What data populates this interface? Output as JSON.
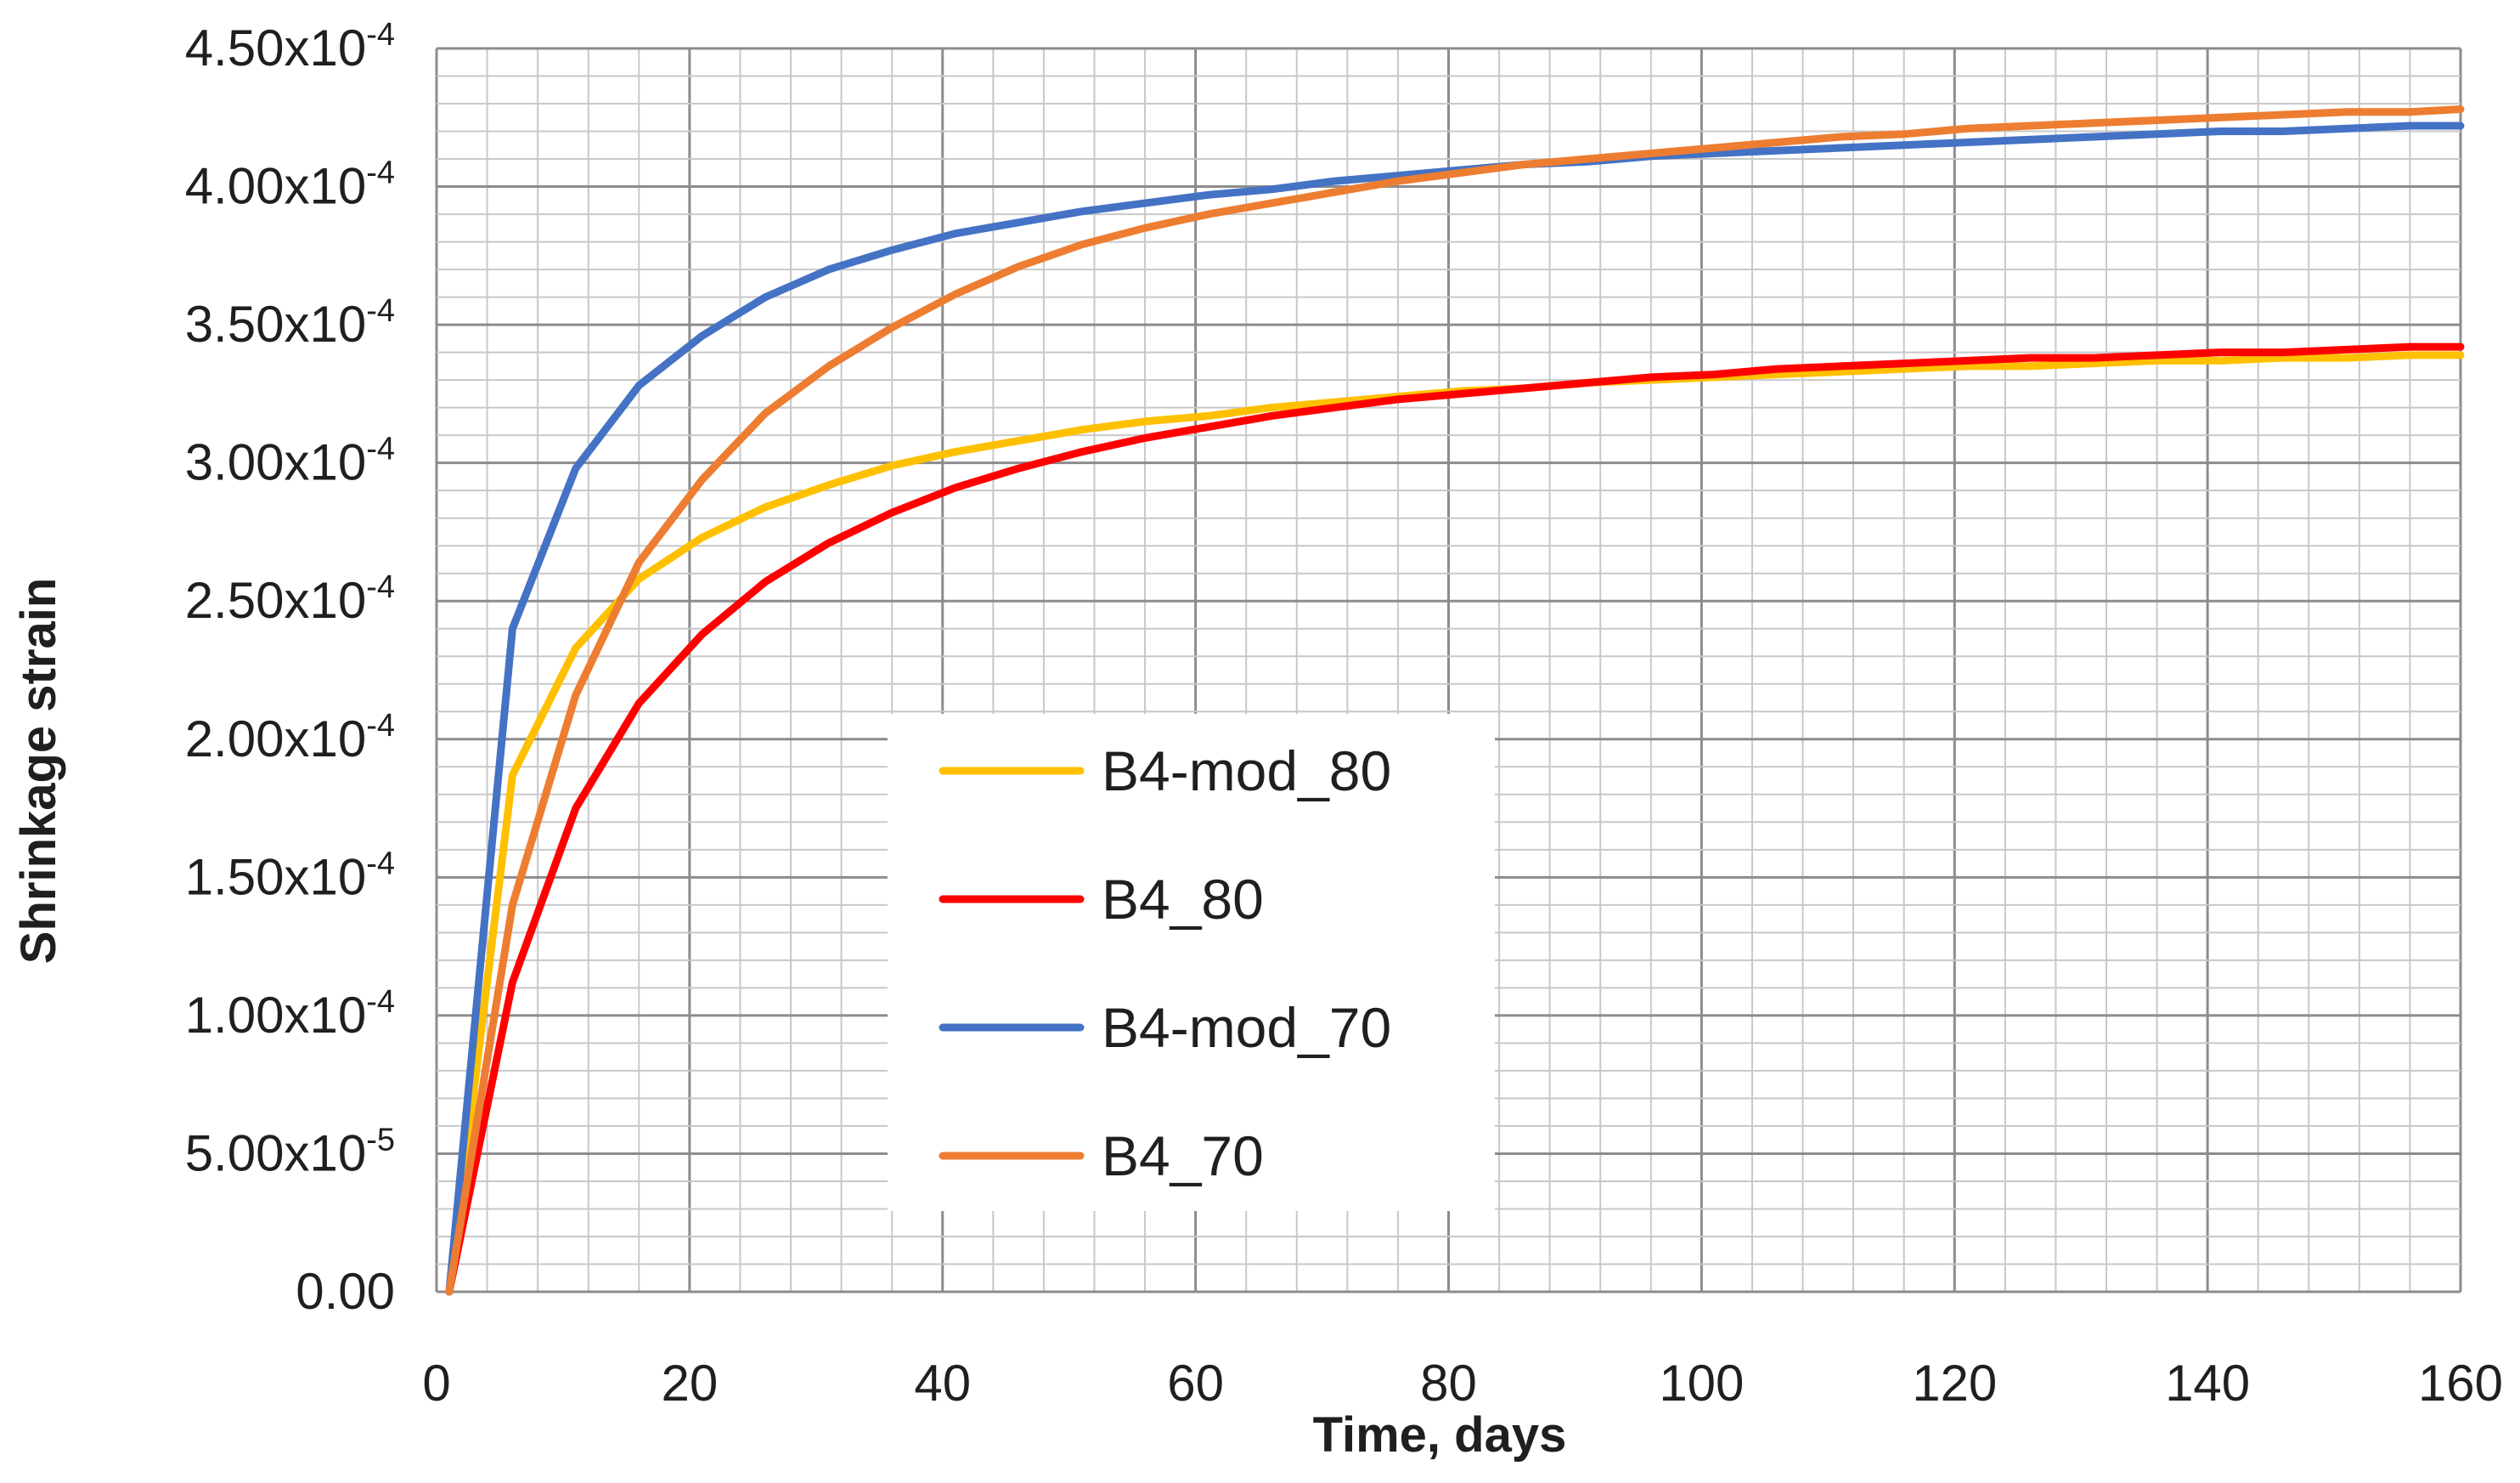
{
  "chart_data": {
    "type": "line",
    "title": "",
    "xlabel": "Time, days",
    "ylabel": "Shrinkage strain",
    "xlim": [
      0,
      160
    ],
    "ylim": [
      0,
      0.00045
    ],
    "grid": "on",
    "legend_position": "center",
    "x_ticks": [
      {
        "value": 0,
        "label": "0"
      },
      {
        "value": 20,
        "label": "20"
      },
      {
        "value": 40,
        "label": "40"
      },
      {
        "value": 60,
        "label": "60"
      },
      {
        "value": 80,
        "label": "80"
      },
      {
        "value": 100,
        "label": "100"
      },
      {
        "value": 120,
        "label": "120"
      },
      {
        "value": 140,
        "label": "140"
      },
      {
        "value": 160,
        "label": "160"
      }
    ],
    "y_ticks": [
      {
        "value": 0,
        "mant": "0.00",
        "exp": ""
      },
      {
        "value": 5e-05,
        "mant": "5.00x10",
        "exp": "-5"
      },
      {
        "value": 0.0001,
        "mant": "1.00x10",
        "exp": "-4"
      },
      {
        "value": 0.00015,
        "mant": "1.50x10",
        "exp": "-4"
      },
      {
        "value": 0.0002,
        "mant": "2.00x10",
        "exp": "-4"
      },
      {
        "value": 0.00025,
        "mant": "2.50x10",
        "exp": "-4"
      },
      {
        "value": 0.0003,
        "mant": "3.00x10",
        "exp": "-4"
      },
      {
        "value": 0.00035,
        "mant": "3.50x10",
        "exp": "-4"
      },
      {
        "value": 0.0004,
        "mant": "4.00x10",
        "exp": "-4"
      },
      {
        "value": 0.00045,
        "mant": "4.50x10",
        "exp": "-4"
      }
    ],
    "x": [
      1,
      6,
      11,
      16,
      21,
      26,
      31,
      36,
      41,
      46,
      51,
      56,
      61,
      66,
      71,
      76,
      81,
      86,
      91,
      96,
      101,
      106,
      111,
      116,
      121,
      126,
      131,
      136,
      141,
      146,
      151,
      156,
      160
    ],
    "series": [
      {
        "name": "B4-mod_80",
        "color": "#FFC000",
        "values": [
          0,
          0.000187,
          0.000233,
          0.000258,
          0.000273,
          0.000284,
          0.000292,
          0.000299,
          0.000304,
          0.000308,
          0.000312,
          0.000315,
          0.000317,
          0.00032,
          0.000322,
          0.000324,
          0.000326,
          0.000327,
          0.000329,
          0.00033,
          0.000331,
          0.000332,
          0.000333,
          0.000334,
          0.000335,
          0.000335,
          0.000336,
          0.000337,
          0.000337,
          0.000338,
          0.000338,
          0.000339,
          0.000339
        ]
      },
      {
        "name": "B4_80",
        "color": "#FF0000",
        "values": [
          0,
          0.000112,
          0.000175,
          0.000213,
          0.000238,
          0.000257,
          0.000271,
          0.000282,
          0.000291,
          0.000298,
          0.000304,
          0.000309,
          0.000313,
          0.000317,
          0.00032,
          0.000323,
          0.000325,
          0.000327,
          0.000329,
          0.000331,
          0.000332,
          0.000334,
          0.000335,
          0.000336,
          0.000337,
          0.000338,
          0.000338,
          0.000339,
          0.00034,
          0.00034,
          0.000341,
          0.000342,
          0.000342
        ]
      },
      {
        "name": "B4-mod_70",
        "color": "#4472C4",
        "values": [
          0,
          0.00024,
          0.000298,
          0.000328,
          0.000346,
          0.00036,
          0.00037,
          0.000377,
          0.000383,
          0.000387,
          0.000391,
          0.000394,
          0.000397,
          0.000399,
          0.000402,
          0.000404,
          0.000406,
          0.000408,
          0.000409,
          0.000411,
          0.000412,
          0.000413,
          0.000414,
          0.000415,
          0.000416,
          0.000417,
          0.000418,
          0.000419,
          0.00042,
          0.00042,
          0.000421,
          0.000422,
          0.000422
        ]
      },
      {
        "name": "B4_70",
        "color": "#ED7D31",
        "values": [
          0,
          0.00014,
          0.000216,
          0.000264,
          0.000294,
          0.000318,
          0.000335,
          0.000349,
          0.000361,
          0.000371,
          0.000379,
          0.000385,
          0.00039,
          0.000394,
          0.000398,
          0.000402,
          0.000405,
          0.000408,
          0.00041,
          0.000412,
          0.000414,
          0.000416,
          0.000418,
          0.000419,
          0.000421,
          0.000422,
          0.000423,
          0.000424,
          0.000425,
          0.000426,
          0.000427,
          0.000427,
          0.000428
        ]
      }
    ]
  }
}
